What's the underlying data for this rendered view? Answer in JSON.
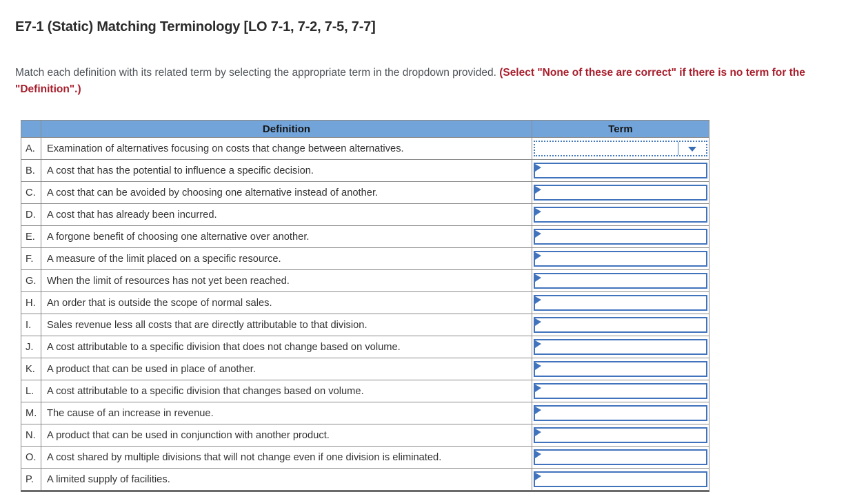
{
  "page": {
    "title": "E7-1 (Static) Matching Terminology [LO 7-1, 7-2, 7-5, 7-7]",
    "instructions": {
      "normal": "Match each definition with its related term by selecting the appropriate term in the dropdown provided. ",
      "emphasis": "(Select \"None of these are correct\" if there is no term for the \"Definition\".)"
    }
  },
  "table": {
    "headers": {
      "letter": "",
      "definition": "Definition",
      "term": "Term"
    },
    "rows": [
      {
        "letter": "A.",
        "definition": "Examination of alternatives focusing on costs that change between alternatives.",
        "term_value": "",
        "state": "focused"
      },
      {
        "letter": "B.",
        "definition": "A cost that has the potential to influence a specific decision.",
        "term_value": "",
        "state": "default"
      },
      {
        "letter": "C.",
        "definition": "A cost that can be avoided by choosing one alternative instead of another.",
        "term_value": "",
        "state": "default"
      },
      {
        "letter": "D.",
        "definition": "A cost that has already been incurred.",
        "term_value": "",
        "state": "default"
      },
      {
        "letter": "E.",
        "definition": "A forgone benefit of choosing one alternative over another.",
        "term_value": "",
        "state": "default"
      },
      {
        "letter": "F.",
        "definition": "A measure of the limit placed on a specific resource.",
        "term_value": "",
        "state": "default"
      },
      {
        "letter": "G.",
        "definition": "When the limit of resources has not yet been reached.",
        "term_value": "",
        "state": "default"
      },
      {
        "letter": "H.",
        "definition": "An order that is outside the scope of normal sales.",
        "term_value": "",
        "state": "default"
      },
      {
        "letter": "I.",
        "definition": "Sales revenue less all costs that are directly attributable to that division.",
        "term_value": "",
        "state": "default"
      },
      {
        "letter": "J.",
        "definition": "A cost attributable to a specific division that does not change based on volume.",
        "term_value": "",
        "state": "default"
      },
      {
        "letter": "K.",
        "definition": "A product that can be used in place of another.",
        "term_value": "",
        "state": "default"
      },
      {
        "letter": "L.",
        "definition": "A cost attributable to a specific division that changes based on volume.",
        "term_value": "",
        "state": "default"
      },
      {
        "letter": "M.",
        "definition": "The cause of an increase in revenue.",
        "term_value": "",
        "state": "default"
      },
      {
        "letter": "N.",
        "definition": "A product that can be used in conjunction with another product.",
        "term_value": "",
        "state": "default"
      },
      {
        "letter": "O.",
        "definition": "A cost shared by multiple divisions that will not change even if one division is eliminated.",
        "term_value": "",
        "state": "default"
      },
      {
        "letter": "P.",
        "definition": "A limited supply of facilities.",
        "term_value": "",
        "state": "default"
      }
    ]
  },
  "colors": {
    "header_bg": "#72a4da",
    "dropdown_border": "#4173bd",
    "dropdown_focus_border": "#4579bd",
    "arrow_blue": "#3a6cb4",
    "emphasis_red": "#a71e2c",
    "grid_border": "#8a8a8a"
  }
}
